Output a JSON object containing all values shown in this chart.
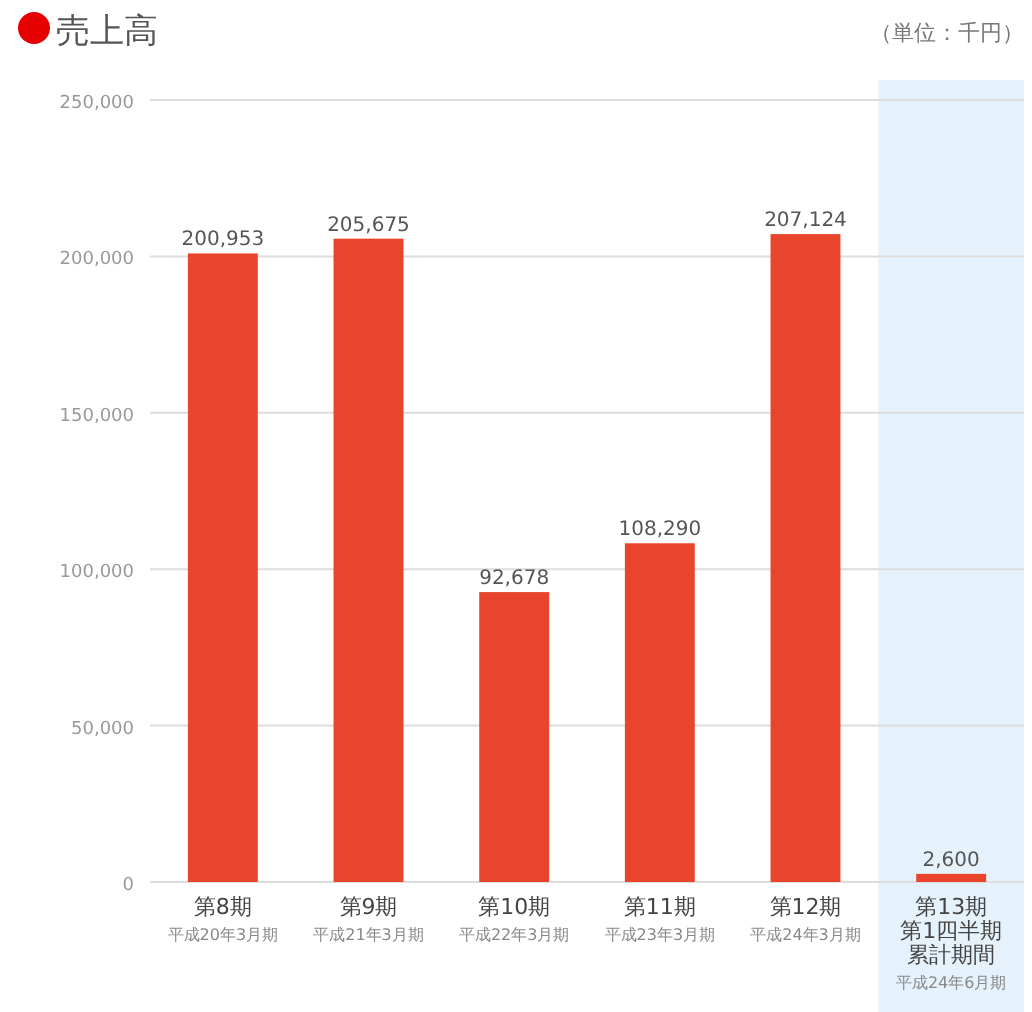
{
  "chart_data": {
    "type": "bar",
    "title": "売上高",
    "annotations": [
      "（単位：千円）",
      "平成20年3月期",
      "平成21年3月期",
      "平成22年3月期",
      "平成23年3月期",
      "平成24年3月期",
      "第1四半期累計期間",
      "平成24年6月期"
    ],
    "categories": [
      "第8期",
      "第9期",
      "第10期",
      "第11期",
      "第12期",
      "第13期"
    ],
    "values": [
      200953,
      205675,
      92678,
      108290,
      207124,
      2600
    ],
    "value_labels": [
      "200,953",
      "205,675",
      "92,678",
      "108,290",
      "207,124",
      "2,600"
    ],
    "color": "#e8452c",
    "ylim": [
      0,
      250000
    ],
    "yticks": [
      0,
      {
        "value": 50000,
        "label": "50,000"
      },
      {
        "value": 100000,
        "label": "100,000"
      },
      {
        "value": 150000,
        "label": "150,000"
      },
      {
        "value": 200000,
        "label": "200,000"
      },
      {
        "value": 250000,
        "label": "250,000"
      }
    ],
    "grid": "y",
    "bands": [
      {
        "axis": "x",
        "from": "第13期",
        "to": "第13期",
        "color": "#e6f2fb"
      }
    ]
  }
}
